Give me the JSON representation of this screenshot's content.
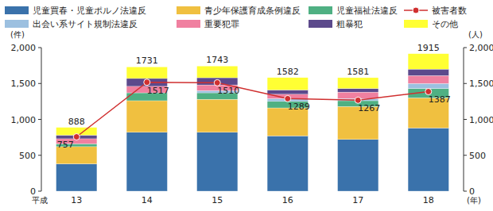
{
  "chart_data": {
    "type": "bar",
    "stacked": true,
    "grid": false,
    "era_label": "平成",
    "x_label": "(年)",
    "y_label": "(件)",
    "y2_label": "(人)",
    "categories": [
      "13",
      "14",
      "15",
      "16",
      "17",
      "18"
    ],
    "ylim": [
      0,
      2000
    ],
    "yticks": [
      0,
      500,
      {
        "value": 1000,
        "label": "1,000"
      },
      {
        "value": 1500,
        "label": "1,500"
      },
      {
        "value": 2000,
        "label": "2,000"
      }
    ],
    "y2lim": [
      0,
      2000
    ],
    "y2ticks": [
      0,
      500,
      {
        "value": 1000,
        "label": "1,000"
      },
      {
        "value": 1500,
        "label": "1,500"
      },
      {
        "value": 2000,
        "label": "2,000"
      }
    ],
    "totals": [
      888,
      1731,
      1743,
      1582,
      1581,
      1915
    ],
    "series": [
      {
        "name": "児童買春・児童ポルノ法違反",
        "color": "#3a72ab",
        "values": [
          380,
          820,
          820,
          770,
          720,
          880
        ]
      },
      {
        "name": "青少年保護育成条例違反",
        "color": "#f0c040",
        "values": [
          240,
          440,
          460,
          390,
          460,
          420
        ]
      },
      {
        "name": "児童福祉法違反",
        "color": "#4fb083",
        "values": [
          40,
          110,
          90,
          90,
          80,
          130
        ]
      },
      {
        "name": "出会い系サイト規制法違反",
        "color": "#9cc0e0",
        "values": [
          0,
          0,
          30,
          40,
          30,
          70
        ]
      },
      {
        "name": "重要犯罪",
        "color": "#f080a0",
        "values": [
          70,
          90,
          80,
          60,
          90,
          110
        ]
      },
      {
        "name": "粗暴犯",
        "color": "#5c4a8c",
        "values": [
          50,
          110,
          100,
          60,
          50,
          90
        ]
      },
      {
        "name": "その他",
        "color": "#ffff33",
        "values": [
          108,
          161,
          163,
          172,
          151,
          215
        ]
      },
      {
        "name": "被害者数",
        "type": "line",
        "axis": "y2",
        "color": "#d03030",
        "marker": "circle",
        "data_labels": true,
        "values": [
          757,
          1517,
          1510,
          1289,
          1267,
          1387
        ]
      }
    ]
  }
}
